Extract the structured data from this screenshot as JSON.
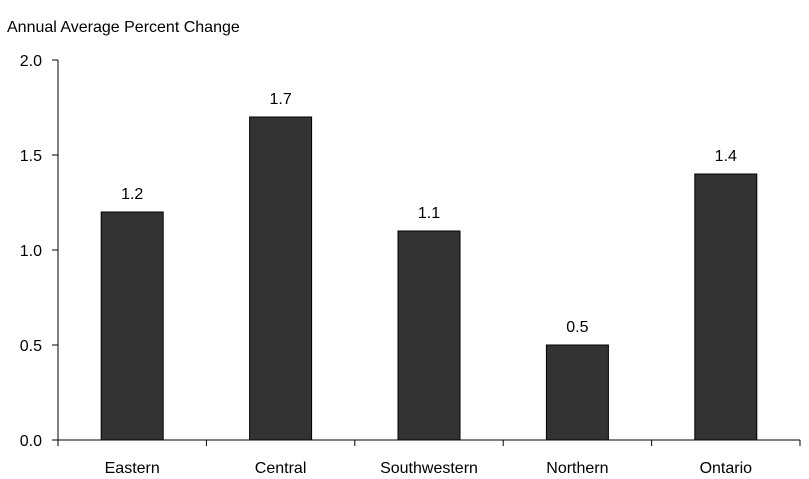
{
  "chart_data": {
    "type": "bar",
    "title": "",
    "ylabel": "Annual Average Percent Change",
    "xlabel": "",
    "categories": [
      "Eastern",
      "Central",
      "Southwestern",
      "Northern",
      "Ontario"
    ],
    "values": [
      1.2,
      1.7,
      1.1,
      0.5,
      1.4
    ],
    "data_labels": [
      "1.2",
      "1.7",
      "1.1",
      "0.5",
      "1.4"
    ],
    "ylim": [
      0,
      2.0
    ],
    "yticks": [
      0.0,
      0.5,
      1.0,
      1.5,
      2.0
    ],
    "ytick_labels": [
      "0.0",
      "0.5",
      "1.0",
      "1.5",
      "2.0"
    ],
    "grid": false,
    "legend": "none",
    "bar_color": "#333333",
    "bar_edge_color": "#000000"
  }
}
